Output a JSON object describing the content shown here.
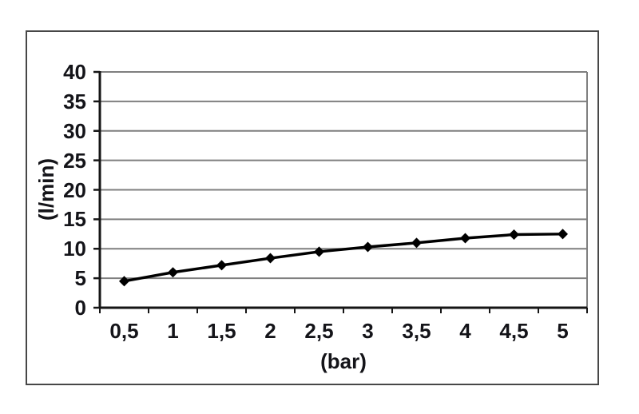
{
  "figure": {
    "background": "#ffffff",
    "frame_color": "#474747"
  },
  "chart_data": {
    "type": "line",
    "title": "",
    "xlabel": "(bar)",
    "ylabel": "(l/min)",
    "categories": [
      "0,5",
      "1",
      "1,5",
      "2",
      "2,5",
      "3",
      "3,5",
      "4",
      "4,5",
      "5"
    ],
    "x_numeric": [
      0.5,
      1,
      1.5,
      2,
      2.5,
      3,
      3.5,
      4,
      4.5,
      5
    ],
    "values": [
      4.5,
      6.0,
      7.2,
      8.4,
      9.5,
      10.3,
      11.0,
      11.8,
      12.4,
      12.5
    ],
    "ylim": [
      0,
      40
    ],
    "yticks": [
      0,
      5,
      10,
      15,
      20,
      25,
      30,
      35,
      40
    ],
    "ytick_labels": [
      "0",
      "5",
      "10",
      "15",
      "20",
      "25",
      "30",
      "35",
      "40"
    ],
    "grid": "horizontal",
    "legend": "none",
    "marker": "diamond",
    "line_color": "#000000",
    "grid_color": "#7f7f7f",
    "axis_color": "#151515",
    "text_color": "#141419"
  }
}
